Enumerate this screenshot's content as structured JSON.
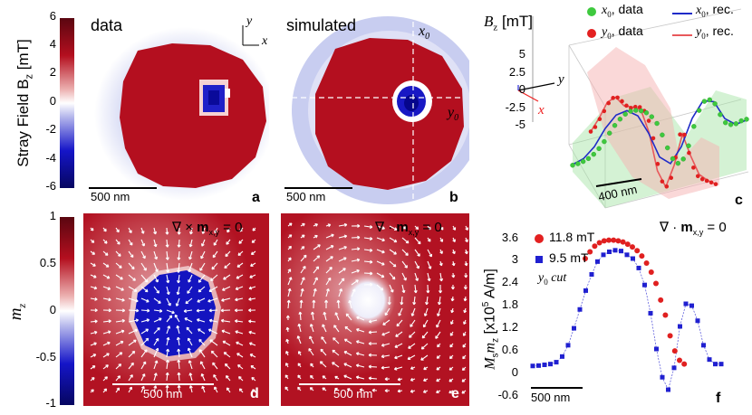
{
  "colors": {
    "red": "#b40f1f",
    "blue": "#1515c8",
    "green": "#3ec93e",
    "fit_blue": "#1f2bc8",
    "fit_red": "#e8585b"
  },
  "top_colorbar": {
    "label": "Stray Field B",
    "label_sub": "z",
    "label_unit": " [mT]",
    "ticks": [
      "6",
      "4",
      "2",
      "0",
      "-2",
      "-4",
      "-6"
    ]
  },
  "bottom_colorbar": {
    "label": "m",
    "label_sub": "z",
    "ticks": [
      "1",
      "0.5",
      "0",
      "-0.5",
      "-1"
    ]
  },
  "panel_a": {
    "title": "data",
    "scalebar": "500 nm",
    "letter": "a",
    "axis_y": "y",
    "axis_x": "x"
  },
  "panel_b": {
    "title": "simulated",
    "scalebar": "500 nm",
    "letter": "b",
    "cut_x": "x",
    "cut_x_sub": "0",
    "cut_y": "y",
    "cut_y_sub": "0"
  },
  "panel_d": {
    "equation_pre": "∇ × ",
    "equation_bold": "m",
    "equation_sub": "x,y",
    "equation_post": " = 0",
    "scalebar": "500 nm",
    "letter": "d"
  },
  "panel_e": {
    "equation_pre": "∇ · ",
    "equation_bold": "m",
    "equation_sub": "x,y",
    "equation_post": " = 0",
    "scalebar": "500 nm",
    "letter": "e"
  },
  "panel_c": {
    "letter": "c",
    "axis_label": "B",
    "axis_label_sub": "z",
    "axis_unit": " [mT]",
    "ticks": [
      "5",
      "2.5",
      "0",
      "-2.5",
      "-5"
    ],
    "scalebar": "400 nm",
    "coord_y": "y",
    "coord_x": "x",
    "legend": [
      {
        "sym": "x",
        "sub": "0",
        "text": ", data"
      },
      {
        "sym": "y",
        "sub": "0",
        "text": ", data"
      },
      {
        "sym": "x",
        "sub": "0",
        "text": ", rec."
      },
      {
        "sym": "y",
        "sub": "0",
        "text": ", rec."
      }
    ]
  },
  "panel_f": {
    "letter": "f",
    "equation_pre": "∇ · ",
    "equation_bold": "m",
    "equation_sub": "x,y",
    "equation_post": " = 0",
    "ylabel": "M",
    "ylabel_sub": "s",
    "ylabel_m": "m",
    "ylabel_m_sub": "z",
    "ylabel_unit": " [x10",
    "ylabel_exp": "5",
    "ylabel_unit2": " A/m]",
    "scalebar": "500 nm",
    "cut_label": "y",
    "cut_label_sub": "0",
    "cut_label_post": " cut",
    "legend": [
      "11.8 mT",
      "9.5 mT"
    ]
  },
  "chart_data": [
    {
      "type": "line",
      "title": "Panel c: line cuts of B_z",
      "ylabel": "B_z [mT]",
      "ylim": [
        -5,
        5
      ],
      "series": [
        {
          "name": "x0, data",
          "values": [
            -5.1,
            -4.9,
            -4.6,
            -4.2,
            -3.6,
            -2.8,
            -1.8,
            -0.6,
            0.5,
            1.4,
            2.1,
            2.5,
            2.6,
            2.5,
            2.2,
            1.6,
            0.6,
            -1.1,
            -3.0,
            -4.6,
            -5.3,
            -4.7,
            -2.8,
            0.0,
            2.3,
            3.6,
            3.8,
            3.2,
            1.6,
            0.4,
            0.1,
            0.2,
            0.6,
            0.8
          ]
        },
        {
          "name": "y0, data",
          "values": [
            -0.2,
            0.6,
            1.9,
            3.2,
            4.5,
            5.4,
            5.6,
            5.2,
            4.7,
            4.5,
            4.8,
            4.9,
            4.5,
            3.2,
            0.8,
            -2.8,
            -5.2,
            -5.8,
            -4.4,
            -1.3,
            2.2,
            2.3,
            -0.2,
            -2.2,
            -3.3,
            -3.6,
            -3.7,
            -3.8,
            -3.9
          ]
        },
        {
          "name": "x0, rec.",
          "values": [
            -5.0,
            -4.2,
            -2.5,
            0.1,
            2.0,
            2.6,
            1.8,
            -0.8,
            -4.3,
            -5.3,
            -2.9,
            1.2,
            3.7,
            3.5,
            1.0,
            0.1,
            0.7
          ]
        },
        {
          "name": "y0, rec.",
          "values": [
            -0.2,
            2.0,
            4.6,
            5.6,
            4.6,
            4.7,
            4.6,
            1.5,
            -3.8,
            -5.9,
            -2.5,
            2.3,
            -0.6,
            -3.0,
            -3.6,
            -3.9
          ]
        }
      ]
    },
    {
      "type": "scatter",
      "title": "Panel f: y0 cut of Ms mz",
      "ylabel": "Ms mz [x10^5 A/m]",
      "ylim": [
        -0.6,
        3.6
      ],
      "yticks": [
        "3.6",
        "3",
        "2.4",
        "1.8",
        "1.2",
        "0.6",
        "0",
        "-0.6"
      ],
      "series": [
        {
          "name": "11.8 mT",
          "values": [
            3.0,
            3.18,
            3.33,
            3.42,
            3.47,
            3.49,
            3.49,
            3.47,
            3.44,
            3.38,
            3.31,
            3.21,
            3.07,
            2.88,
            2.64,
            2.34,
            1.9,
            1.5,
            0.95,
            0.55,
            0.3,
            0.2
          ]
        },
        {
          "name": "9.5 mT",
          "values": [
            0.15,
            0.16,
            0.18,
            0.2,
            0.25,
            0.4,
            0.7,
            1.15,
            1.65,
            2.15,
            2.58,
            2.92,
            3.1,
            3.18,
            3.22,
            3.2,
            3.1,
            3.0,
            2.75,
            2.3,
            1.55,
            0.6,
            -0.15,
            -0.48,
            0.1,
            1.2,
            1.8,
            1.75,
            1.35,
            0.7,
            0.32,
            0.2,
            0.2
          ]
        }
      ]
    }
  ]
}
